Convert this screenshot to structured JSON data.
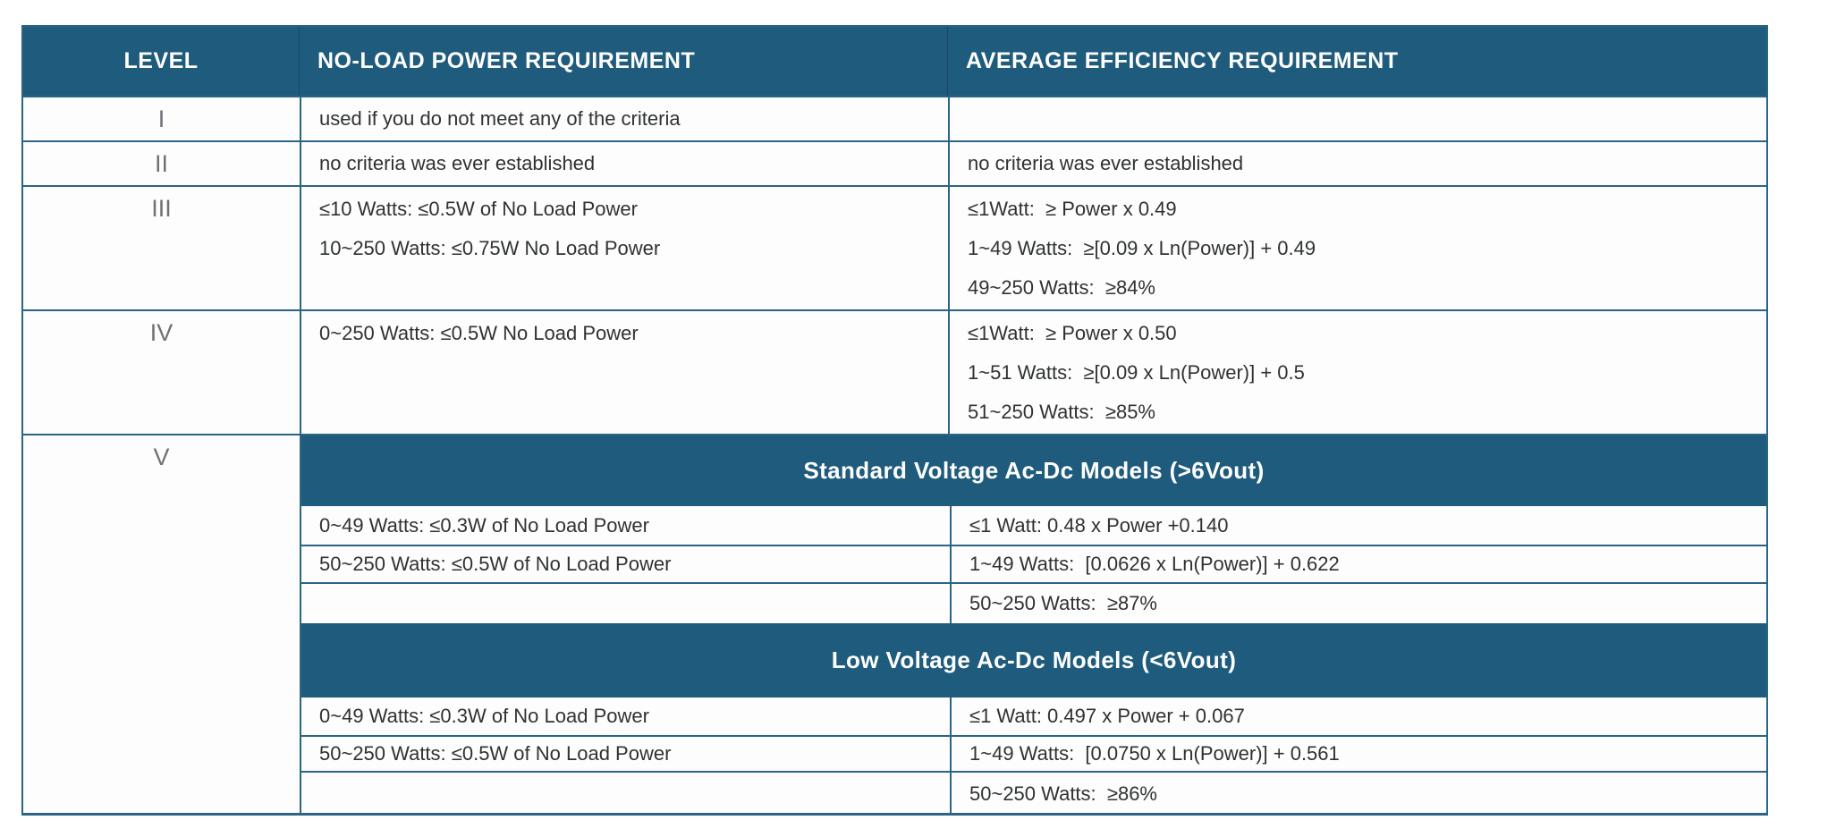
{
  "colors": {
    "header_bg": "#1F5B7C",
    "banner_bg": "#1F5B7C",
    "border": "#2A6585",
    "level_text": "#6E7276",
    "body_text": "#2F3234",
    "header_text": "#FFFFFF"
  },
  "header": {
    "level": "LEVEL",
    "no_load": "NO-LOAD POWER REQUIREMENT",
    "avg_eff": "AVERAGE EFFICIENCY REQUIREMENT"
  },
  "rows": [
    {
      "level": "I",
      "no_load": [
        "used if you do not meet any of the criteria"
      ],
      "avg_eff": []
    },
    {
      "level": "II",
      "no_load": [
        "no criteria was ever established"
      ],
      "avg_eff": [
        "no criteria was ever established"
      ]
    },
    {
      "level": "III",
      "no_load": [
        "≤10 Watts: ≤0.5W of No Load Power",
        "10~250 Watts: ≤0.75W No Load Power"
      ],
      "avg_eff": [
        "≤1Watt:  ≥ Power x 0.49",
        "1~49 Watts:  ≥[0.09 x Ln(Power)] + 0.49",
        "49~250 Watts:  ≥84%"
      ]
    },
    {
      "level": "IV",
      "no_load": [
        "0~250 Watts: ≤0.5W No Load Power"
      ],
      "avg_eff": [
        "≤1Watt:  ≥ Power x 0.50",
        "1~51 Watts:  ≥[0.09 x Ln(Power)] + 0.5",
        "51~250 Watts:  ≥85%"
      ]
    }
  ],
  "level5": {
    "level": "V",
    "sections": [
      {
        "banner": "Standard Voltage Ac-Dc Models (>6Vout)",
        "rows": [
          {
            "no_load": "0~49 Watts: ≤0.3W of No Load Power",
            "avg_eff": "≤1 Watt: 0.48 x Power +0.140"
          },
          {
            "no_load": "50~250 Watts: ≤0.5W of No Load Power",
            "avg_eff": "1~49 Watts:  [0.0626 x Ln(Power)] + 0.622"
          },
          {
            "no_load": "",
            "avg_eff": "50~250 Watts:  ≥87%"
          }
        ]
      },
      {
        "banner": "Low Voltage Ac-Dc Models (<6Vout)",
        "rows": [
          {
            "no_load": "0~49 Watts: ≤0.3W of No Load Power",
            "avg_eff": "≤1 Watt: 0.497 x Power + 0.067"
          },
          {
            "no_load": "50~250 Watts: ≤0.5W of No Load Power",
            "avg_eff": "1~49 Watts:  [0.0750 x Ln(Power)] + 0.561"
          },
          {
            "no_load": "",
            "avg_eff": "50~250 Watts:  ≥86%"
          }
        ]
      }
    ]
  },
  "chart_data": {
    "type": "table",
    "columns": [
      "LEVEL",
      "NO-LOAD POWER REQUIREMENT",
      "AVERAGE EFFICIENCY REQUIREMENT"
    ],
    "rows": [
      [
        "I",
        "used if you do not meet any of the criteria",
        ""
      ],
      [
        "II",
        "no criteria was ever established",
        "no criteria was ever established"
      ],
      [
        "III",
        "≤10 Watts: ≤0.5W of No Load Power | 10~250 Watts: ≤0.75W No Load Power",
        "≤1Watt: ≥ Power x 0.49 | 1~49 Watts: ≥[0.09 x Ln(Power)] + 0.49 | 49~250 Watts: ≥84%"
      ],
      [
        "IV",
        "0~250 Watts: ≤0.5W No Load Power",
        "≤1Watt: ≥ Power x 0.50 | 1~51 Watts: ≥[0.09 x Ln(Power)] + 0.5 | 51~250 Watts: ≥85%"
      ],
      [
        "V — Standard Voltage Ac-Dc Models (>6Vout)",
        "0~49 Watts: ≤0.3W of No Load Power | 50~250 Watts: ≤0.5W of No Load Power",
        "≤1 Watt: 0.48 x Power +0.140 | 1~49 Watts: [0.0626 x Ln(Power)] + 0.622 | 50~250 Watts: ≥87%"
      ],
      [
        "V — Low Voltage Ac-Dc Models (<6Vout)",
        "0~49 Watts: ≤0.3W of No Load Power | 50~250 Watts: ≤0.5W of No Load Power",
        "≤1 Watt: 0.497 x Power + 0.067 | 1~49 Watts: [0.0750 x Ln(Power)] + 0.561 | 50~250 Watts: ≥86%"
      ]
    ]
  }
}
